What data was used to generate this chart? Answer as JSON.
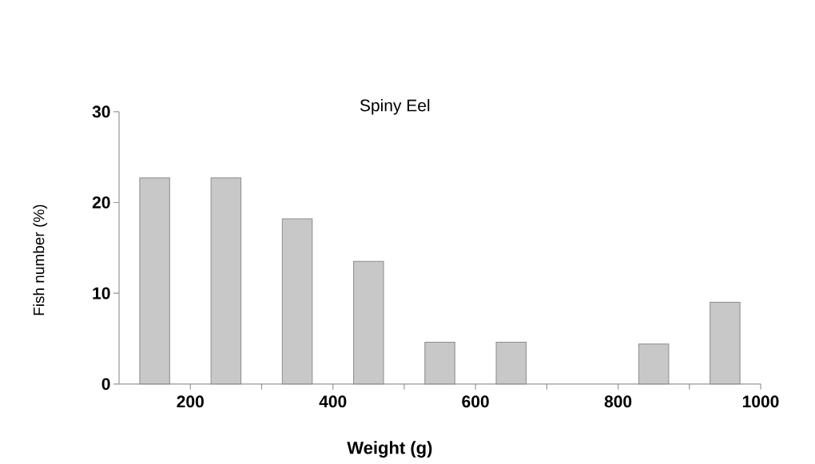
{
  "chart_data": {
    "type": "bar",
    "title": "Spiny Eel",
    "xlabel": "Weight (g)",
    "ylabel": "Fish number (%)",
    "x": [
      150,
      250,
      350,
      450,
      550,
      650,
      750,
      850,
      950
    ],
    "values": [
      22.7,
      22.7,
      18.2,
      13.5,
      4.6,
      4.6,
      null,
      4.4,
      9.0
    ],
    "color": "#c8c8c8",
    "xlim": [
      100,
      1000
    ],
    "ylim": [
      0,
      30
    ],
    "xticks": [
      200,
      {
        "value": 300,
        "label": null
      },
      400,
      {
        "value": 500,
        "label": null
      },
      600,
      {
        "value": 700,
        "label": null
      },
      800,
      {
        "value": 900,
        "label": null
      },
      1000
    ],
    "yticks": [
      0,
      10,
      20,
      30
    ],
    "grid": false
  }
}
